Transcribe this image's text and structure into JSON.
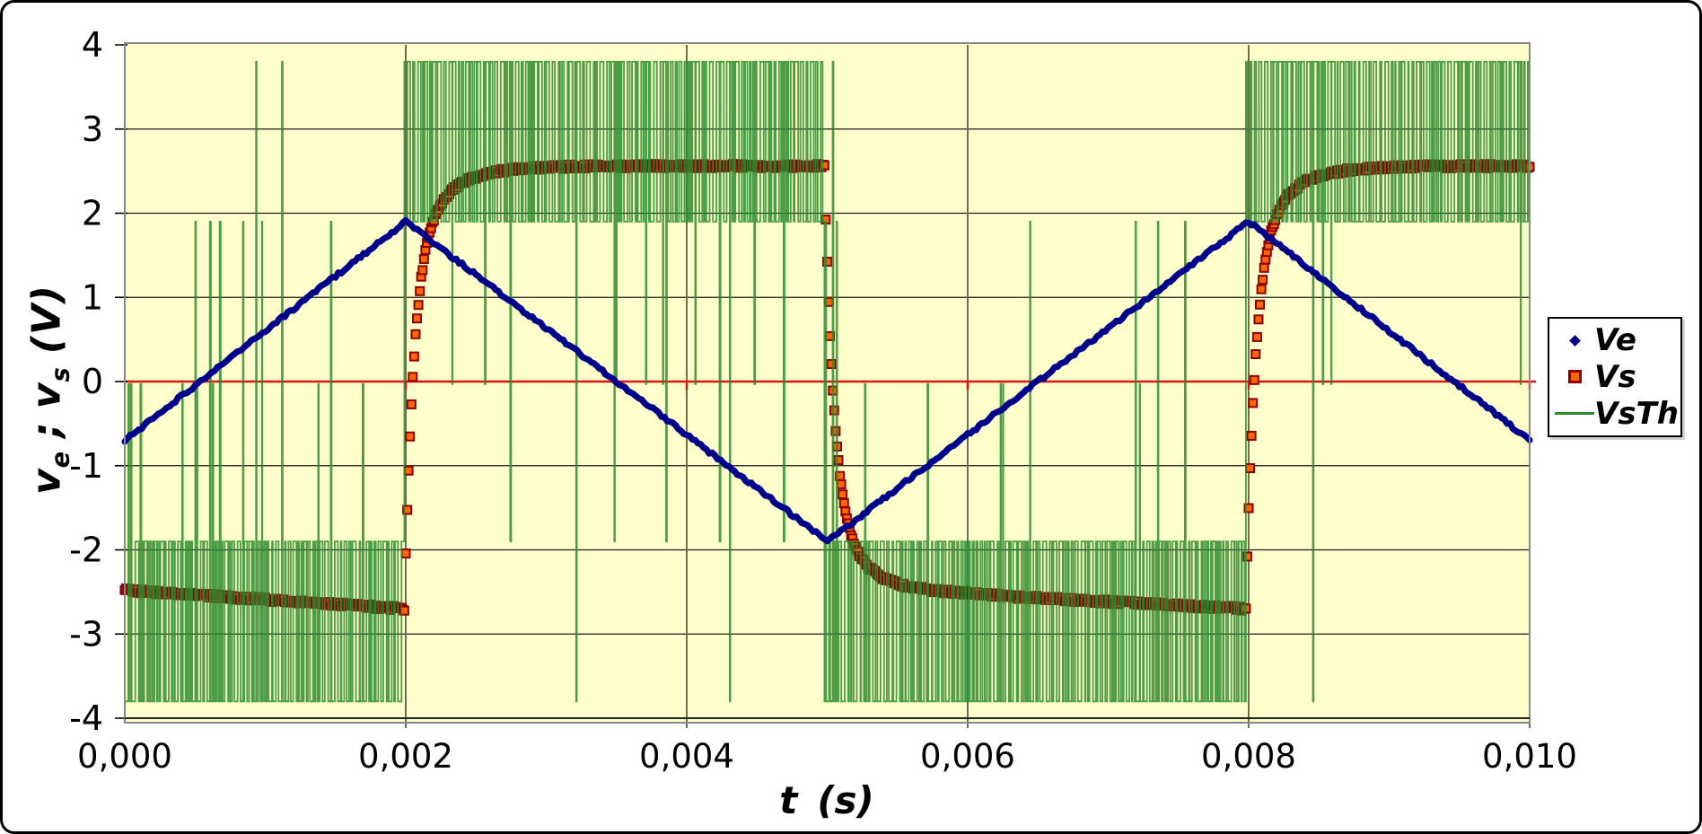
{
  "chart_data": {
    "type": "line",
    "title": "",
    "xlabel": "t (s)",
    "ylabel": "ve ; vs (V)",
    "xlim": [
      0,
      0.01
    ],
    "ylim": [
      -4,
      4
    ],
    "x_ticks": {
      "values": [
        0,
        0.002,
        0.004,
        0.006,
        0.008,
        0.01
      ],
      "labels": [
        "0,000",
        "0,002",
        "0,004",
        "0,006",
        "0,008",
        "0,010"
      ]
    },
    "y_ticks": {
      "values": [
        4,
        3,
        2,
        1,
        0,
        -1,
        -2,
        -3,
        -4
      ],
      "labels": [
        "4",
        "3",
        "2",
        "1",
        "0",
        "-1",
        "-2",
        "-3",
        "-4"
      ]
    },
    "grid": {
      "horizontal": true,
      "vertical": true,
      "h_color": "#1a1a1a",
      "v_color": "#6e6e55",
      "zero_axis_color": "#d81414",
      "plot_bg": "#ffffcc",
      "frame_color": "#888888"
    },
    "sample_period_s": 1e-05,
    "series": [
      {
        "name": "Ve",
        "kind": "triangle-wave",
        "color": "#00008B",
        "description": "Triangular input voltage, period 6 ms, peaks +1.9 V / -1.9 V",
        "period_s": 0.006,
        "amplitude_V": 1.9,
        "vertices_t_s": [
          0,
          0.002,
          0.005,
          0.008,
          0.01
        ],
        "vertices_V": [
          -0.7,
          1.9,
          -1.9,
          1.9,
          -0.7
        ]
      },
      {
        "name": "Vs",
        "kind": "smoothed-square",
        "marker": "square",
        "marker_fill": "#FF6600",
        "marker_stroke": "#8B0000",
        "description": "Measured output: square wave with RC settling and slow drift",
        "start_V": -2.48,
        "switch_times_s": [
          0.00199,
          0.00498,
          0.00798
        ],
        "high_level_V": 2.56,
        "low_level_V": -2.52,
        "low_drift_V": -0.18,
        "tau_fast_s": 6.5e-05,
        "tau_slow_s": 0.00023,
        "fast_weight": 0.78
      },
      {
        "name": "VsTh",
        "kind": "comparator-chatter",
        "color": "#2E8B2E",
        "description": "Theoretical output chattering between rails 1.9 V and 3.8 V (absolute value), with excursions to the opposite polarity",
        "phases": [
          {
            "from_s": 0,
            "to_s": 0.00199,
            "state": "low"
          },
          {
            "from_s": 0.00199,
            "to_s": 0.00498,
            "state": "high"
          },
          {
            "from_s": 0.00498,
            "to_s": 0.00798,
            "state": "low"
          },
          {
            "from_s": 0.00798,
            "to_s": 0.01,
            "state": "high"
          }
        ],
        "high_band_V": [
          1.9,
          3.8
        ],
        "low_band_V": [
          -3.8,
          -1.9
        ],
        "dwell_range_s": [
          4e-06,
          2.6e-05
        ],
        "excursion_probability": 0.11
      }
    ],
    "legend": {
      "position": "right",
      "items": [
        {
          "label": "Ve",
          "marker": "diamond",
          "color": "#00008B"
        },
        {
          "label": "Vs",
          "marker": "square",
          "fill": "#FF6600",
          "stroke": "#8B0000"
        },
        {
          "label": "VsTh",
          "marker": "line",
          "color": "#2E8B2E"
        }
      ]
    }
  },
  "axes": {
    "y_title": {
      "v1": "v",
      "sub1": "e",
      "sep": ";",
      "v2": "v",
      "sub2": "s",
      "unit": "(V)"
    },
    "x_title": {
      "symbol": "t",
      "unit": "(s)"
    }
  }
}
